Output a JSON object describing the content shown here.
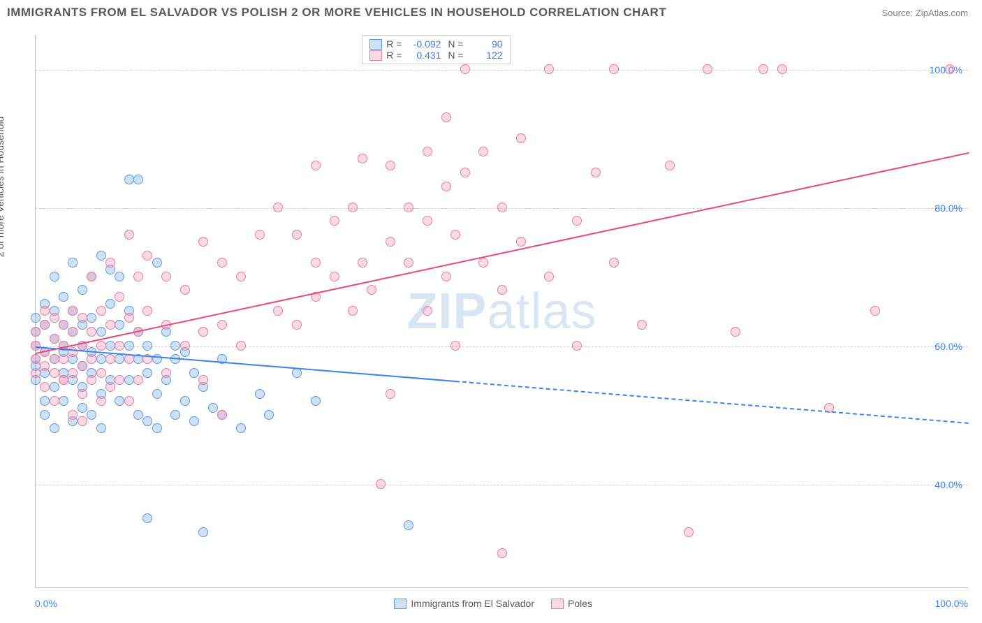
{
  "title": "IMMIGRANTS FROM EL SALVADOR VS POLISH 2 OR MORE VEHICLES IN HOUSEHOLD CORRELATION CHART",
  "source_label": "Source: ZipAtlas.com",
  "ylabel": "2 or more Vehicles in Household",
  "watermark": "ZIPatlas",
  "chart": {
    "type": "scatter",
    "background_color": "#ffffff",
    "grid_color": "#d0d0d0",
    "axis_color": "#bdbdbd",
    "tick_color": "#3b82f6",
    "label_color": "#5a5a5a",
    "title_fontsize": 17,
    "tick_fontsize": 14,
    "label_fontsize": 14,
    "xlim": [
      0,
      100
    ],
    "ylim": [
      25,
      105
    ],
    "xticks": [
      {
        "v": 0,
        "l": "0.0%"
      },
      {
        "v": 100,
        "l": "100.0%"
      }
    ],
    "yticks": [
      {
        "v": 40,
        "l": "40.0%"
      },
      {
        "v": 60,
        "l": "60.0%"
      },
      {
        "v": 80,
        "l": "80.0%"
      },
      {
        "v": 100,
        "l": "100.0%"
      }
    ],
    "marker_radius": 7,
    "marker_fill_opacity": 0.35,
    "series": [
      {
        "name": "Immigrants from El Salvador",
        "legend_label": "Immigrants from El Salvador",
        "color_stroke": "#5c9be0",
        "color_fill": "rgba(120,170,230,0.35)",
        "R": "-0.092",
        "N": "90",
        "trend": {
          "x1": 0,
          "y1": 60,
          "x2": 100,
          "y2": 49,
          "solid_until_x": 45,
          "color": "#3b82f6",
          "width": 2
        },
        "points": [
          [
            0,
            58
          ],
          [
            0,
            60
          ],
          [
            0,
            62
          ],
          [
            0,
            55
          ],
          [
            0,
            57
          ],
          [
            0,
            64
          ],
          [
            1,
            52
          ],
          [
            1,
            56
          ],
          [
            1,
            59
          ],
          [
            1,
            63
          ],
          [
            1,
            66
          ],
          [
            1,
            50
          ],
          [
            2,
            54
          ],
          [
            2,
            58
          ],
          [
            2,
            61
          ],
          [
            2,
            65
          ],
          [
            2,
            48
          ],
          [
            2,
            70
          ],
          [
            3,
            52
          ],
          [
            3,
            56
          ],
          [
            3,
            60
          ],
          [
            3,
            63
          ],
          [
            3,
            67
          ],
          [
            3,
            59
          ],
          [
            4,
            49
          ],
          [
            4,
            55
          ],
          [
            4,
            58
          ],
          [
            4,
            62
          ],
          [
            4,
            72
          ],
          [
            4,
            65
          ],
          [
            5,
            51
          ],
          [
            5,
            57
          ],
          [
            5,
            60
          ],
          [
            5,
            68
          ],
          [
            5,
            54
          ],
          [
            5,
            63
          ],
          [
            6,
            50
          ],
          [
            6,
            56
          ],
          [
            6,
            59
          ],
          [
            6,
            64
          ],
          [
            6,
            70
          ],
          [
            7,
            48
          ],
          [
            7,
            53
          ],
          [
            7,
            58
          ],
          [
            7,
            62
          ],
          [
            7,
            73
          ],
          [
            8,
            55
          ],
          [
            8,
            60
          ],
          [
            8,
            66
          ],
          [
            8,
            71
          ],
          [
            9,
            52
          ],
          [
            9,
            58
          ],
          [
            9,
            63
          ],
          [
            9,
            70
          ],
          [
            10,
            55
          ],
          [
            10,
            84
          ],
          [
            10,
            60
          ],
          [
            10,
            65
          ],
          [
            11,
            50
          ],
          [
            11,
            58
          ],
          [
            11,
            84
          ],
          [
            11,
            62
          ],
          [
            12,
            49
          ],
          [
            12,
            56
          ],
          [
            12,
            60
          ],
          [
            12,
            35
          ],
          [
            13,
            53
          ],
          [
            13,
            58
          ],
          [
            13,
            72
          ],
          [
            13,
            48
          ],
          [
            14,
            55
          ],
          [
            14,
            62
          ],
          [
            15,
            50
          ],
          [
            15,
            58
          ],
          [
            15,
            60
          ],
          [
            16,
            52
          ],
          [
            16,
            59
          ],
          [
            17,
            49
          ],
          [
            17,
            56
          ],
          [
            18,
            33
          ],
          [
            18,
            54
          ],
          [
            19,
            51
          ],
          [
            20,
            50
          ],
          [
            20,
            58
          ],
          [
            22,
            48
          ],
          [
            24,
            53
          ],
          [
            25,
            50
          ],
          [
            28,
            56
          ],
          [
            30,
            52
          ],
          [
            40,
            34
          ]
        ]
      },
      {
        "name": "Poles",
        "legend_label": "Poles",
        "color_stroke": "#e97ba0",
        "color_fill": "rgba(240,150,180,0.35)",
        "R": "0.431",
        "N": "122",
        "trend": {
          "x1": 0,
          "y1": 59,
          "x2": 100,
          "y2": 88,
          "solid_until_x": 100,
          "color": "#e54b7b",
          "width": 2
        },
        "points": [
          [
            0,
            56
          ],
          [
            0,
            58
          ],
          [
            0,
            60
          ],
          [
            0,
            62
          ],
          [
            1,
            54
          ],
          [
            1,
            57
          ],
          [
            1,
            59
          ],
          [
            1,
            63
          ],
          [
            1,
            65
          ],
          [
            2,
            52
          ],
          [
            2,
            56
          ],
          [
            2,
            58
          ],
          [
            2,
            61
          ],
          [
            2,
            64
          ],
          [
            3,
            55
          ],
          [
            3,
            58
          ],
          [
            3,
            60
          ],
          [
            3,
            63
          ],
          [
            3,
            55
          ],
          [
            4,
            50
          ],
          [
            4,
            56
          ],
          [
            4,
            59
          ],
          [
            4,
            62
          ],
          [
            4,
            65
          ],
          [
            5,
            53
          ],
          [
            5,
            57
          ],
          [
            5,
            60
          ],
          [
            5,
            64
          ],
          [
            5,
            49
          ],
          [
            6,
            55
          ],
          [
            6,
            58
          ],
          [
            6,
            62
          ],
          [
            6,
            70
          ],
          [
            7,
            52
          ],
          [
            7,
            56
          ],
          [
            7,
            60
          ],
          [
            7,
            65
          ],
          [
            8,
            54
          ],
          [
            8,
            58
          ],
          [
            8,
            63
          ],
          [
            8,
            72
          ],
          [
            9,
            55
          ],
          [
            9,
            60
          ],
          [
            9,
            67
          ],
          [
            10,
            52
          ],
          [
            10,
            58
          ],
          [
            10,
            64
          ],
          [
            10,
            76
          ],
          [
            11,
            55
          ],
          [
            11,
            62
          ],
          [
            11,
            70
          ],
          [
            12,
            58
          ],
          [
            12,
            65
          ],
          [
            12,
            73
          ],
          [
            14,
            56
          ],
          [
            14,
            63
          ],
          [
            14,
            70
          ],
          [
            16,
            60
          ],
          [
            16,
            68
          ],
          [
            18,
            55
          ],
          [
            18,
            62
          ],
          [
            18,
            75
          ],
          [
            20,
            63
          ],
          [
            20,
            72
          ],
          [
            20,
            50
          ],
          [
            22,
            60
          ],
          [
            22,
            70
          ],
          [
            24,
            76
          ],
          [
            26,
            80
          ],
          [
            26,
            65
          ],
          [
            28,
            63
          ],
          [
            28,
            76
          ],
          [
            30,
            72
          ],
          [
            30,
            67
          ],
          [
            30,
            86
          ],
          [
            32,
            70
          ],
          [
            32,
            78
          ],
          [
            34,
            65
          ],
          [
            34,
            80
          ],
          [
            35,
            72
          ],
          [
            35,
            87
          ],
          [
            36,
            68
          ],
          [
            37,
            40
          ],
          [
            38,
            53
          ],
          [
            38,
            75
          ],
          [
            38,
            86
          ],
          [
            40,
            72
          ],
          [
            40,
            80
          ],
          [
            42,
            65
          ],
          [
            42,
            78
          ],
          [
            42,
            88
          ],
          [
            44,
            70
          ],
          [
            44,
            83
          ],
          [
            44,
            93
          ],
          [
            45,
            60
          ],
          [
            45,
            76
          ],
          [
            46,
            85
          ],
          [
            46,
            100
          ],
          [
            48,
            72
          ],
          [
            48,
            88
          ],
          [
            50,
            68
          ],
          [
            50,
            80
          ],
          [
            50,
            30
          ],
          [
            52,
            75
          ],
          [
            52,
            90
          ],
          [
            55,
            70
          ],
          [
            55,
            100
          ],
          [
            58,
            78
          ],
          [
            58,
            60
          ],
          [
            60,
            85
          ],
          [
            62,
            72
          ],
          [
            62,
            100
          ],
          [
            65,
            63
          ],
          [
            68,
            86
          ],
          [
            70,
            33
          ],
          [
            72,
            100
          ],
          [
            75,
            62
          ],
          [
            78,
            100
          ],
          [
            80,
            100
          ],
          [
            85,
            51
          ],
          [
            90,
            65
          ],
          [
            98,
            100
          ]
        ]
      }
    ]
  },
  "legend_top": {
    "rows": [
      {
        "series_idx": 0,
        "r_label": "R =",
        "n_label": "N ="
      },
      {
        "series_idx": 1,
        "r_label": "R =",
        "n_label": "N ="
      }
    ]
  }
}
